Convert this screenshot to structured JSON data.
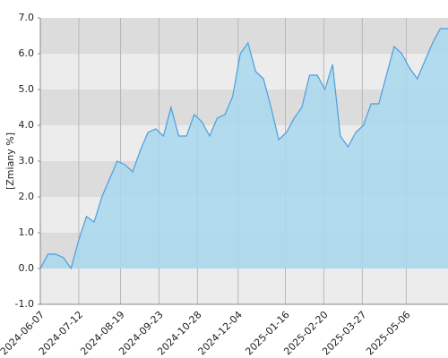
{
  "chart_data": {
    "type": "area",
    "y_label": "[Zmiany %]",
    "x": [
      "2024-06-07",
      "2024-06-14",
      "2024-06-21",
      "2024-06-28",
      "2024-07-05",
      "2024-07-12",
      "2024-07-19",
      "2024-07-26",
      "2024-08-02",
      "2024-08-09",
      "2024-08-16",
      "2024-08-23",
      "2024-08-30",
      "2024-09-06",
      "2024-09-13",
      "2024-09-20",
      "2024-09-27",
      "2024-10-04",
      "2024-10-11",
      "2024-10-18",
      "2024-10-25",
      "2024-11-01",
      "2024-11-08",
      "2024-11-15",
      "2024-11-22",
      "2024-11-29",
      "2024-12-06",
      "2024-12-13",
      "2024-12-20",
      "2024-12-27",
      "2025-01-03",
      "2025-01-10",
      "2025-01-17",
      "2025-01-24",
      "2025-01-31",
      "2025-02-07",
      "2025-02-14",
      "2025-02-21",
      "2025-02-28",
      "2025-03-07",
      "2025-03-14",
      "2025-03-21",
      "2025-03-28",
      "2025-04-04",
      "2025-04-11",
      "2025-04-18",
      "2025-04-25",
      "2025-05-02",
      "2025-05-09",
      "2025-05-16",
      "2025-05-23",
      "2025-05-30",
      "2025-06-06",
      "2025-06-13"
    ],
    "values": [
      0.0,
      0.4,
      0.4,
      0.3,
      0.0,
      0.8,
      1.45,
      1.3,
      2.0,
      2.5,
      3.0,
      2.9,
      2.7,
      3.3,
      3.8,
      3.9,
      3.7,
      4.5,
      3.7,
      3.7,
      4.3,
      4.1,
      3.7,
      4.2,
      4.3,
      4.8,
      6.0,
      6.3,
      5.5,
      5.3,
      4.5,
      3.6,
      3.8,
      4.2,
      4.5,
      5.4,
      5.4,
      5.0,
      5.7,
      3.7,
      3.4,
      3.8,
      4.0,
      4.6,
      4.6,
      5.4,
      6.2,
      6.0,
      5.6,
      5.3,
      5.8,
      6.3,
      6.7,
      6.7
    ],
    "line_color": "#4a9fe0",
    "fill_color": "#a9d8ee",
    "xlim": [
      "2024-06-07",
      "2025-06-13"
    ],
    "xticks": [
      "2024-06-07",
      "2024-07-12",
      "2024-08-19",
      "2024-09-23",
      "2024-10-28",
      "2024-12-04",
      "2025-01-16",
      "2025-02-20",
      "2025-03-27",
      "2025-05-06"
    ],
    "ylim": [
      -1,
      7
    ],
    "yticks": [
      {
        "value": -1,
        "label": "-1.0"
      },
      {
        "value": 0,
        "label": "0.0"
      },
      {
        "value": 1,
        "label": "1.0"
      },
      {
        "value": 2,
        "label": "2.0"
      },
      {
        "value": 3,
        "label": "3.0"
      },
      {
        "value": 4,
        "label": "4.0"
      },
      {
        "value": 5,
        "label": "5.0"
      },
      {
        "value": 6,
        "label": "6.0"
      },
      {
        "value": 7,
        "label": "7.0"
      }
    ],
    "grid": true
  }
}
